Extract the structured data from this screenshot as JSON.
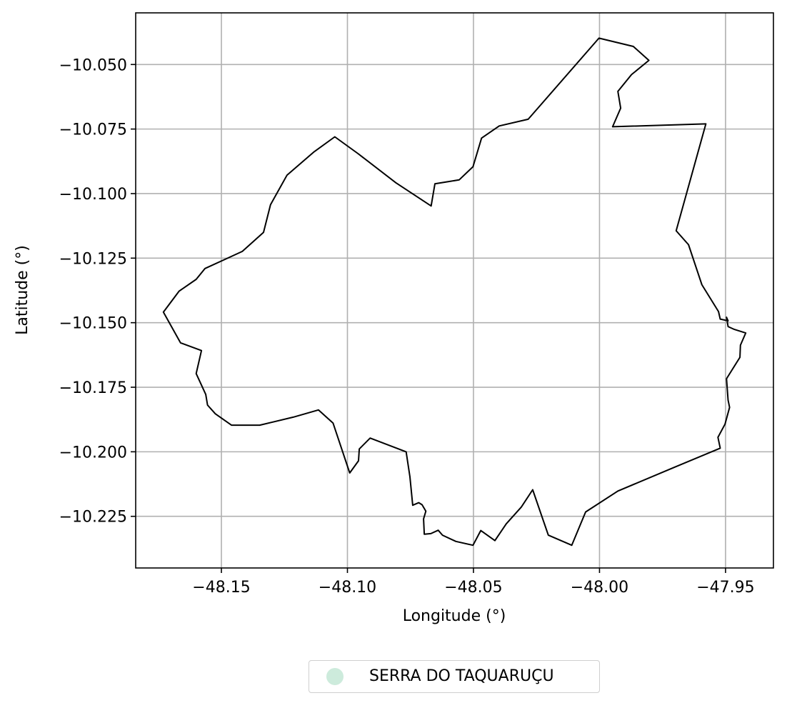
{
  "chart_data": {
    "type": "map",
    "title": "",
    "xlabel": "Longitude (°)",
    "ylabel": "Latitude (°)",
    "xlim": [
      -48.184,
      -47.931
    ],
    "ylim": [
      -10.245,
      -10.03
    ],
    "xticks": [
      -48.15,
      -48.1,
      -48.05,
      -48.0,
      -47.95
    ],
    "xtick_labels": [
      "−48.15",
      "−48.10",
      "−48.05",
      "−48.00",
      "−47.95"
    ],
    "yticks": [
      -10.05,
      -10.075,
      -10.1,
      -10.125,
      -10.15,
      -10.175,
      -10.2,
      -10.225
    ],
    "ytick_labels": [
      "−10.050",
      "−10.075",
      "−10.100",
      "−10.125",
      "−10.150",
      "−10.175",
      "−10.200",
      "−10.225"
    ],
    "grid": true,
    "legend": {
      "placement": "bottom-center, below axes",
      "entries": [
        {
          "label": "SERRA DO TAQUARUÇU",
          "marker": "circle",
          "color": "#cdebdc"
        }
      ]
    },
    "boundary_color": "#000000",
    "boundary": [
      [
        -48.0002,
        -10.0398
      ],
      [
        -47.9866,
        -10.043
      ],
      [
        -47.9804,
        -10.0484
      ],
      [
        -47.9873,
        -10.0539
      ],
      [
        -47.9927,
        -10.0604
      ],
      [
        -47.9916,
        -10.0669
      ],
      [
        -47.9948,
        -10.0741
      ],
      [
        -47.9578,
        -10.073
      ],
      [
        -47.9696,
        -10.1144
      ],
      [
        -47.9647,
        -10.1198
      ],
      [
        -47.9594,
        -10.1353
      ],
      [
        -47.9528,
        -10.1457
      ],
      [
        -47.9521,
        -10.1486
      ],
      [
        -47.949,
        -10.1493
      ],
      [
        -47.9496,
        -10.1479
      ],
      [
        -47.949,
        -10.1515
      ],
      [
        -47.9465,
        -10.1526
      ],
      [
        -47.942,
        -10.154
      ],
      [
        -47.9441,
        -10.1587
      ],
      [
        -47.9443,
        -10.1634
      ],
      [
        -47.9496,
        -10.1717
      ],
      [
        -47.949,
        -10.18
      ],
      [
        -47.9484,
        -10.1828
      ],
      [
        -47.9502,
        -10.1893
      ],
      [
        -47.953,
        -10.1944
      ],
      [
        -47.9521,
        -10.1986
      ],
      [
        -47.9703,
        -10.206
      ],
      [
        -47.9927,
        -10.2152
      ],
      [
        -48.0055,
        -10.2233
      ],
      [
        -48.011,
        -10.2362
      ],
      [
        -48.0203,
        -10.2323
      ],
      [
        -48.0265,
        -10.2147
      ],
      [
        -48.031,
        -10.2214
      ],
      [
        -48.037,
        -10.2279
      ],
      [
        -48.0415,
        -10.2344
      ],
      [
        -48.0471,
        -10.2305
      ],
      [
        -48.0502,
        -10.2362
      ],
      [
        -48.057,
        -10.2347
      ],
      [
        -48.0623,
        -10.2323
      ],
      [
        -48.064,
        -10.2304
      ],
      [
        -48.0669,
        -10.2317
      ],
      [
        -48.0695,
        -10.2319
      ],
      [
        -48.0698,
        -10.226
      ],
      [
        -48.0689,
        -10.223
      ],
      [
        -48.0704,
        -10.2205
      ],
      [
        -48.0717,
        -10.2197
      ],
      [
        -48.0741,
        -10.2207
      ],
      [
        -48.0752,
        -10.2097
      ],
      [
        -48.0767,
        -10.2
      ],
      [
        -48.091,
        -10.1947
      ],
      [
        -48.0953,
        -10.1989
      ],
      [
        -48.0956,
        -10.2035
      ],
      [
        -48.0991,
        -10.2082
      ],
      [
        -48.1057,
        -10.1889
      ],
      [
        -48.1115,
        -10.1838
      ],
      [
        -48.1215,
        -10.1866
      ],
      [
        -48.1348,
        -10.1897
      ],
      [
        -48.146,
        -10.1897
      ],
      [
        -48.1524,
        -10.1853
      ],
      [
        -48.1555,
        -10.1819
      ],
      [
        -48.1562,
        -10.1778
      ],
      [
        -48.16,
        -10.1697
      ],
      [
        -48.1579,
        -10.1608
      ],
      [
        -48.1662,
        -10.1578
      ],
      [
        -48.173,
        -10.1459
      ],
      [
        -48.1668,
        -10.1378
      ],
      [
        -48.16,
        -10.1332
      ],
      [
        -48.1565,
        -10.129
      ],
      [
        -48.1491,
        -10.1257
      ],
      [
        -48.1417,
        -10.1224
      ],
      [
        -48.1333,
        -10.115
      ],
      [
        -48.1305,
        -10.1043
      ],
      [
        -48.124,
        -10.0929
      ],
      [
        -48.1132,
        -10.0838
      ],
      [
        -48.105,
        -10.078
      ],
      [
        -48.0958,
        -10.0845
      ],
      [
        -48.0808,
        -10.0958
      ],
      [
        -48.0668,
        -10.1048
      ],
      [
        -48.0653,
        -10.0962
      ],
      [
        -48.0557,
        -10.0947
      ],
      [
        -48.0502,
        -10.0896
      ],
      [
        -48.0468,
        -10.0785
      ],
      [
        -48.0398,
        -10.0738
      ],
      [
        -48.0283,
        -10.0712
      ],
      [
        -48.0002,
        -10.0398
      ]
    ]
  }
}
